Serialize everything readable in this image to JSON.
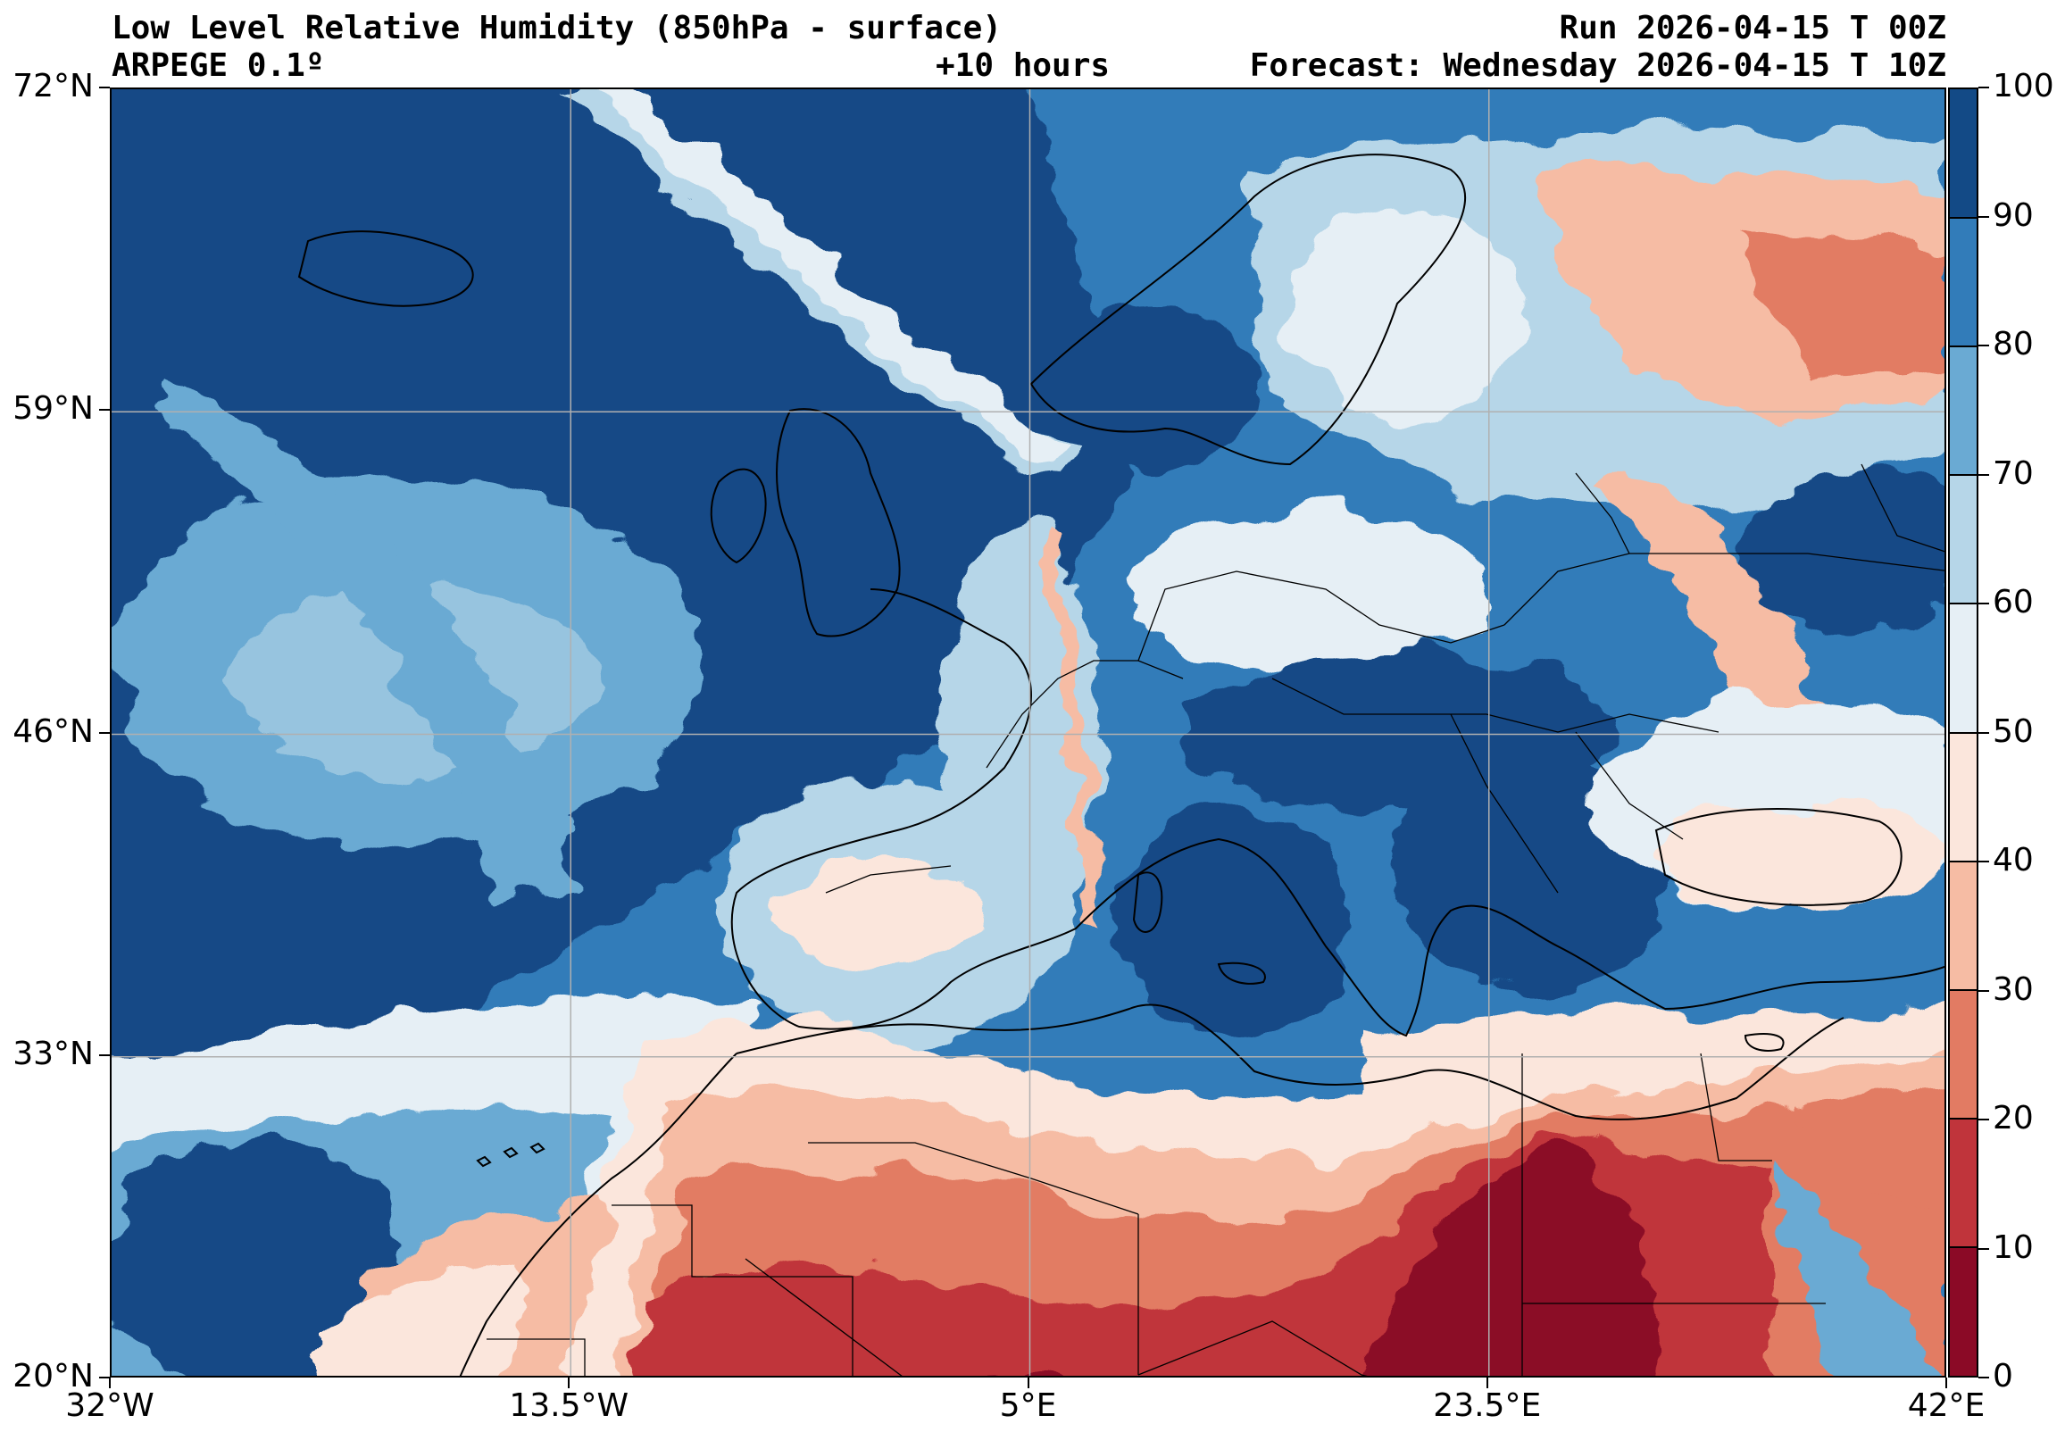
{
  "header": {
    "title": "Low Level Relative Humidity (850hPa - surface)",
    "model": "ARPEGE 0.1º",
    "lead": "+10 hours",
    "run": "Run 2026-04-15 T 00Z",
    "forecast": "Forecast: Wednesday 2026-04-15 T 10Z"
  },
  "map": {
    "extent_lon": [
      -32,
      42
    ],
    "extent_lat": [
      20,
      72
    ],
    "lat_labels": [
      "72°N",
      "59°N",
      "46°N",
      "33°N",
      "20°N"
    ],
    "lon_labels": [
      "32°W",
      "13.5°W",
      "5°E",
      "23.5°E",
      "42°E"
    ],
    "gridlines": true,
    "field": "relative humidity (%)"
  },
  "colorbar": {
    "min": 0,
    "max": 100,
    "labels": [
      "100",
      "90",
      "80",
      "70",
      "60",
      "50",
      "40",
      "30",
      "20",
      "10",
      "0"
    ],
    "colors": [
      "#67001f",
      "#b2182b",
      "#d6604d",
      "#f4a582",
      "#fddbc7",
      "#f7f7f7",
      "#d1e5f0",
      "#92c5de",
      "#4393c3",
      "#2166ac",
      "#053061"
    ],
    "band_colors": [
      "#8b0a26",
      "#c0343b",
      "#e27b63",
      "#f6bca4",
      "#fbe6dc",
      "#e6eff5",
      "#b6d6e8",
      "#6aaad3",
      "#327cb9",
      "#134a86"
    ]
  }
}
